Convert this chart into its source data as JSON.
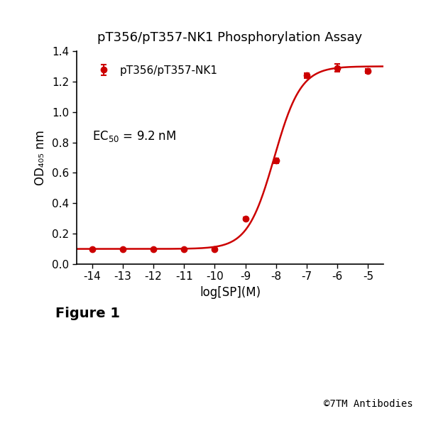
{
  "title": "pT356/pT357-NK1 Phosphorylation Assay",
  "xlabel": "log[SP](M)",
  "ylabel": "OD₄₀₅ nm",
  "legend_label": "pT356/pT357-NK1",
  "ec50_text": "EC$_{50}$ = 9.2 nM",
  "figure_label": "Figure 1",
  "copyright": "©7TM Antibodies",
  "line_color": "#cc0000",
  "marker_color": "#cc0000",
  "x_data": [
    -14,
    -13,
    -12,
    -11,
    -10,
    -9,
    -8,
    -7,
    -6,
    -5
  ],
  "y_data": [
    0.1,
    0.1,
    0.1,
    0.1,
    0.1,
    0.3,
    0.68,
    1.24,
    1.29,
    1.27
  ],
  "y_err": [
    0.005,
    0.005,
    0.005,
    0.005,
    0.005,
    0.01,
    0.015,
    0.015,
    0.025,
    0.015
  ],
  "ylim": [
    0.0,
    1.4
  ],
  "xlim": [
    -14.5,
    -4.5
  ],
  "xticks": [
    -14,
    -13,
    -12,
    -11,
    -10,
    -9,
    -8,
    -7,
    -6,
    -5
  ],
  "yticks": [
    0.0,
    0.2,
    0.4,
    0.6,
    0.8,
    1.0,
    1.2,
    1.4
  ],
  "figsize": [
    6.0,
    6.0
  ],
  "dpi": 100,
  "background_color": "#ffffff",
  "title_fontsize": 13,
  "label_fontsize": 12,
  "tick_fontsize": 11,
  "legend_fontsize": 11,
  "annotation_fontsize": 12,
  "figure_label_fontsize": 14
}
